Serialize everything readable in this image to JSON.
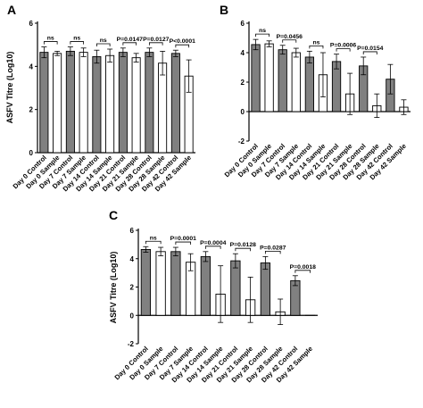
{
  "chart_data": [
    {
      "panel": "A",
      "type": "bar",
      "ylabel": "ASFV Titre (Log10)",
      "ylim": [
        0,
        6
      ],
      "yticks": [
        0,
        2,
        4,
        6
      ],
      "categories": [
        "Day 0 Control",
        "Day 0 Sample",
        "Day 7 Control",
        "Day 7 Sample",
        "Day 14 Control",
        "Day 14 Sample",
        "Day 21 Control",
        "Day 21 Sample",
        "Day 28 Control",
        "Day 28 Sample",
        "Day 42 Control",
        "Day 42 Sample"
      ],
      "values": [
        4.65,
        4.6,
        4.7,
        4.65,
        4.45,
        4.5,
        4.65,
        4.4,
        4.65,
        4.15,
        4.6,
        3.55
      ],
      "errors": [
        0.25,
        0.1,
        0.2,
        0.2,
        0.3,
        0.3,
        0.2,
        0.2,
        0.2,
        0.55,
        0.15,
        0.75
      ],
      "fills": [
        "#808080",
        "#ffffff",
        "#808080",
        "#ffffff",
        "#808080",
        "#ffffff",
        "#808080",
        "#ffffff",
        "#808080",
        "#ffffff",
        "#808080",
        "#ffffff"
      ],
      "comparisons": [
        {
          "from": 0,
          "to": 1,
          "label": "ns"
        },
        {
          "from": 2,
          "to": 3,
          "label": "ns"
        },
        {
          "from": 4,
          "to": 5,
          "label": "ns"
        },
        {
          "from": 6,
          "to": 7,
          "label": "P=0.0147"
        },
        {
          "from": 8,
          "to": 9,
          "label": "P=0.0127"
        },
        {
          "from": 10,
          "to": 11,
          "label": "P<0.0001"
        }
      ]
    },
    {
      "panel": "B",
      "type": "bar",
      "ylim": [
        -2,
        6
      ],
      "yticks": [
        -2,
        0,
        2,
        4,
        6
      ],
      "categories": [
        "Day 0 Control",
        "Day 0 Sample",
        "Day 7 Control",
        "Day 7 Sample",
        "Day 14 Control",
        "Day 14 Sample",
        "Day 21 Control",
        "Day 21 Sample",
        "Day 28 Control",
        "Day 28 Sample",
        "Day 42 Control",
        "Day 42 Sample"
      ],
      "values": [
        4.55,
        4.6,
        4.2,
        4.0,
        3.7,
        2.5,
        3.4,
        1.2,
        3.1,
        0.4,
        2.2,
        0.3
      ],
      "errors": [
        0.35,
        0.2,
        0.3,
        0.3,
        0.4,
        1.5,
        0.5,
        1.4,
        0.6,
        0.8,
        1.0,
        0.5
      ],
      "fills": [
        "#808080",
        "#ffffff",
        "#808080",
        "#ffffff",
        "#808080",
        "#ffffff",
        "#808080",
        "#ffffff",
        "#808080",
        "#ffffff",
        "#808080",
        "#ffffff"
      ],
      "comparisons": [
        {
          "from": 0,
          "to": 1,
          "label": "ns"
        },
        {
          "from": 2,
          "to": 3,
          "label": "P=0.0456"
        },
        {
          "from": 4,
          "to": 5,
          "label": "ns"
        },
        {
          "from": 6,
          "to": 7,
          "label": "P=0.0006"
        },
        {
          "from": 8,
          "to": 9,
          "label": "P=0.0154"
        }
      ]
    },
    {
      "panel": "C",
      "type": "bar",
      "ylabel": "ASFV Titre (Log10)",
      "ylim": [
        -2,
        6
      ],
      "yticks": [
        -2,
        0,
        2,
        4,
        6
      ],
      "categories": [
        "Day 0 Control",
        "Day 0 Sample",
        "Day 7 Control",
        "Day 7 Sample",
        "Day 14 Control",
        "Day 14 Sample",
        "Day 21 Control",
        "Day 21 Sample",
        "Day 28 Control",
        "Day 28 Sample",
        "Day 42 Control",
        "Day 42 Sample"
      ],
      "values": [
        4.65,
        4.5,
        4.5,
        3.75,
        4.15,
        1.5,
        3.85,
        1.1,
        3.7,
        0.25,
        2.45,
        0.0
      ],
      "errors": [
        0.2,
        0.3,
        0.3,
        0.6,
        0.35,
        2.0,
        0.5,
        1.6,
        0.45,
        0.9,
        0.35,
        0.0
      ],
      "fills": [
        "#808080",
        "#ffffff",
        "#808080",
        "#ffffff",
        "#808080",
        "#ffffff",
        "#808080",
        "#ffffff",
        "#808080",
        "#ffffff",
        "#808080",
        "#ffffff"
      ],
      "comparisons": [
        {
          "from": 0,
          "to": 1,
          "label": "ns"
        },
        {
          "from": 2,
          "to": 3,
          "label": "P=0.0001"
        },
        {
          "from": 4,
          "to": 5,
          "label": "P=0.0004"
        },
        {
          "from": 6,
          "to": 7,
          "label": "P=0.0128"
        },
        {
          "from": 8,
          "to": 9,
          "label": "P=0.0287"
        },
        {
          "from": 10,
          "to": 11,
          "label": "P=0.0018"
        }
      ]
    }
  ],
  "colors": {
    "control": "#808080",
    "sample": "#ffffff",
    "axis": "#000000"
  }
}
